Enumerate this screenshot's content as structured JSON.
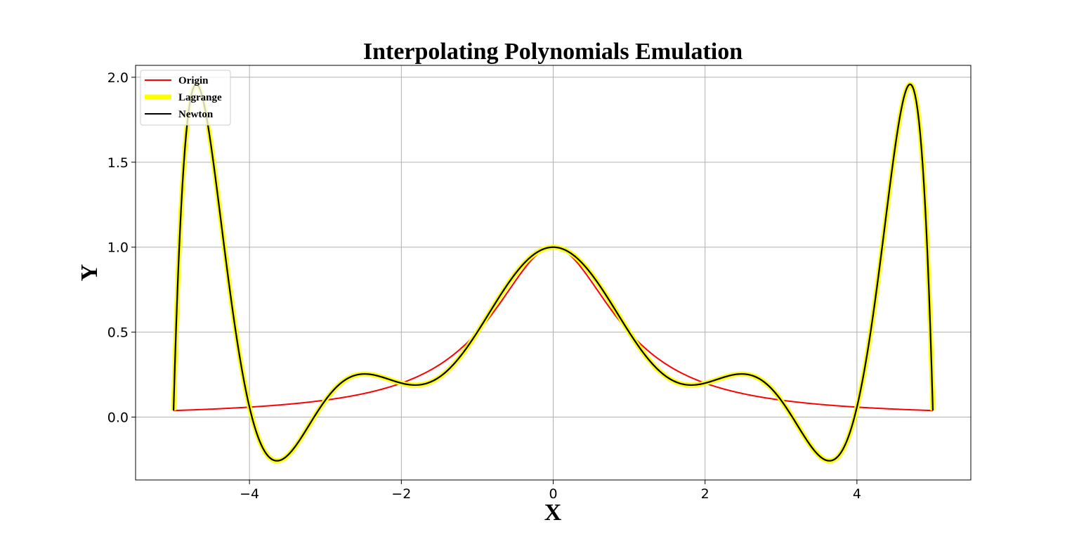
{
  "chart_data": {
    "type": "line",
    "title": "Interpolating Polynomials Emulation",
    "xlabel": "X",
    "ylabel": "Y",
    "xlim": [
      -5.5,
      5.5
    ],
    "ylim": [
      -0.37,
      2.07
    ],
    "xticks": [
      -4,
      -2,
      0,
      2,
      4
    ],
    "xtick_labels": [
      "−4",
      "−2",
      "0",
      "2",
      "4"
    ],
    "yticks": [
      0.0,
      0.5,
      1.0,
      1.5,
      2.0
    ],
    "ytick_labels": [
      "0.0",
      "0.5",
      "1.0",
      "1.5",
      "2.0"
    ],
    "grid": true,
    "legend_position": "upper-left",
    "nodes_x": [
      -5,
      -4,
      -3,
      -2,
      -1,
      0,
      1,
      2,
      3,
      4,
      5
    ],
    "series": [
      {
        "name": "Origin",
        "color": "#ff0000",
        "function": "1/(1+x^2)",
        "x_range": [
          -5,
          5
        ]
      },
      {
        "name": "Lagrange",
        "color": "#ffff00",
        "function": "interpolating polynomial of 1/(1+x^2) on nodes_x",
        "x_range": [
          -5,
          5
        ]
      },
      {
        "name": "Newton",
        "color": "#000000",
        "function": "interpolating polynomial of 1/(1+x^2) on nodes_x",
        "x_range": [
          -5,
          5
        ]
      }
    ]
  }
}
